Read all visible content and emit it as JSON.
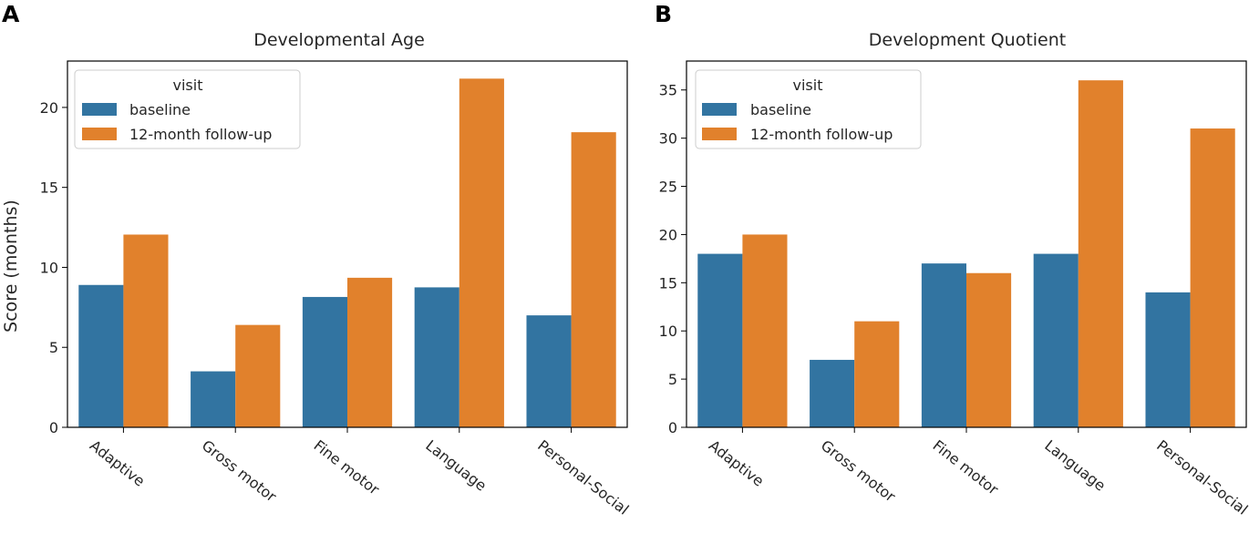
{
  "chart_data": [
    {
      "panel": "A",
      "type": "bar",
      "title": "Developmental Age",
      "xlabel": "",
      "ylabel": "Score (months)",
      "ylim": [
        0,
        22.9
      ],
      "yticks": [
        0,
        5,
        10,
        15,
        20
      ],
      "categories": [
        "Adaptive",
        "Gross motor",
        "Fine motor",
        "Language",
        "Personal-Social"
      ],
      "legend": {
        "title": "visit",
        "position": "top-left"
      },
      "series": [
        {
          "name": "baseline",
          "color": "#3274a1",
          "values": [
            8.9,
            3.5,
            8.15,
            8.75,
            7.0
          ]
        },
        {
          "name": "12-month follow-up",
          "color": "#e1812c",
          "values": [
            12.05,
            6.4,
            9.35,
            21.8,
            18.45
          ]
        }
      ]
    },
    {
      "panel": "B",
      "type": "bar",
      "title": "Development Quotient",
      "xlabel": "",
      "ylabel": "",
      "ylim": [
        0,
        38.0
      ],
      "yticks": [
        0,
        5,
        10,
        15,
        20,
        25,
        30,
        35
      ],
      "categories": [
        "Adaptive",
        "Gross motor",
        "Fine motor",
        "Language",
        "Personal-Social"
      ],
      "legend": {
        "title": "visit",
        "position": "top-left"
      },
      "series": [
        {
          "name": "baseline",
          "color": "#3274a1",
          "values": [
            18,
            7,
            17,
            18,
            14
          ]
        },
        {
          "name": "12-month follow-up",
          "color": "#e1812c",
          "values": [
            20,
            11,
            16,
            36,
            31
          ]
        }
      ]
    }
  ]
}
